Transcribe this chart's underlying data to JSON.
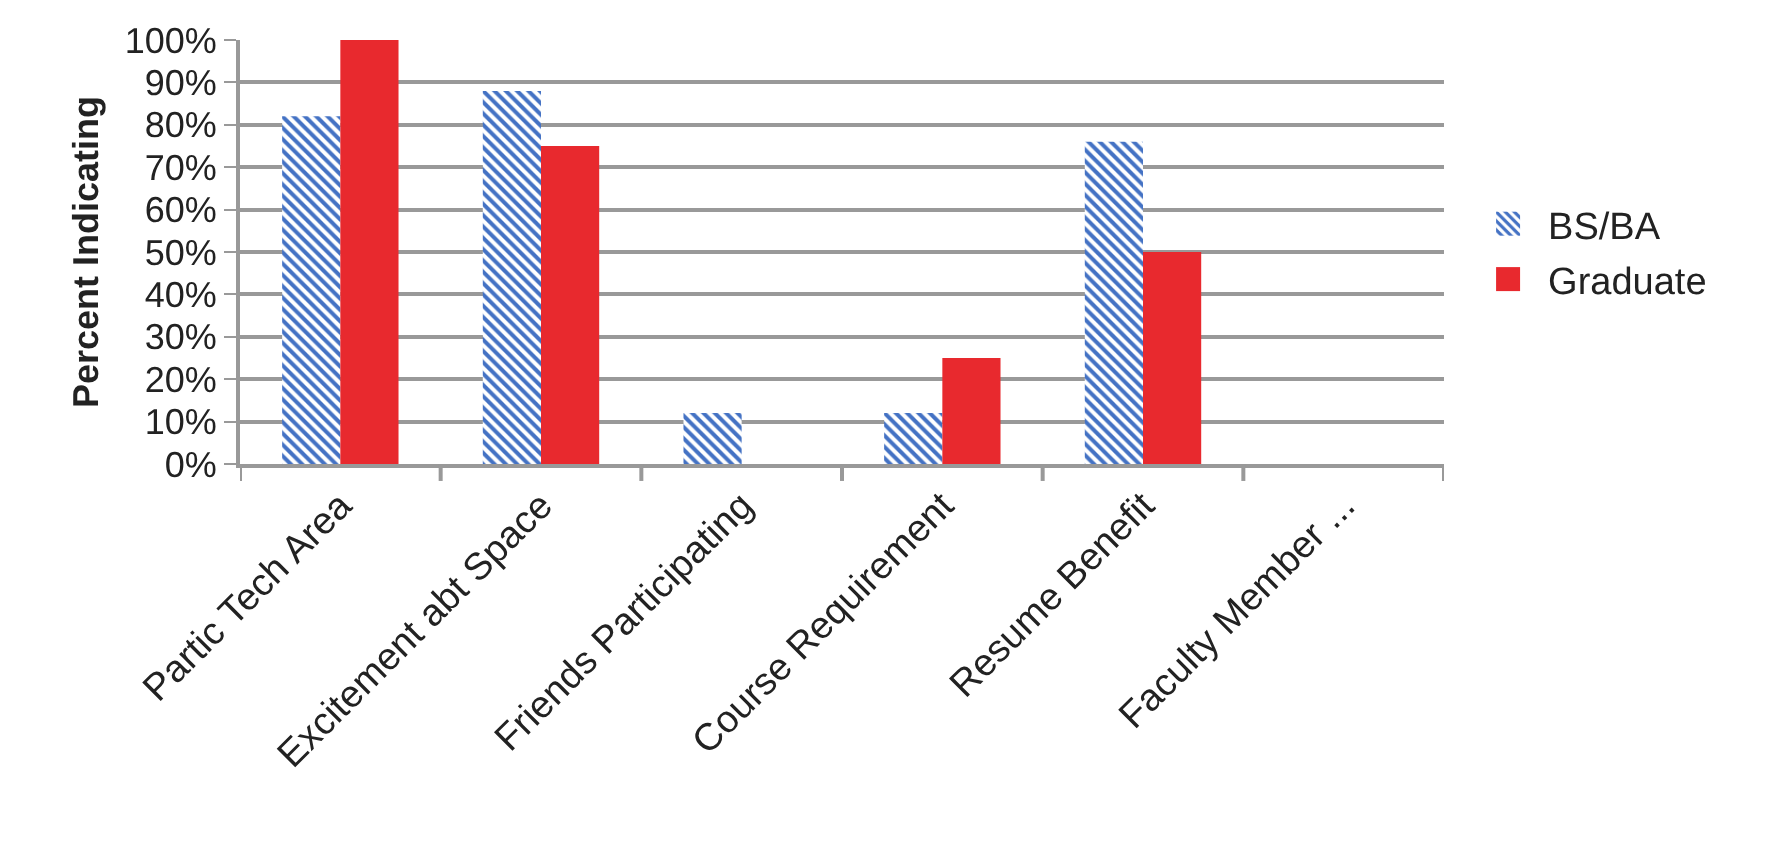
{
  "chart_data": {
    "type": "bar",
    "ylabel": "Percent Indicating",
    "categories": [
      "Partic Tech Area",
      "Excitement abt Space",
      "Friends Participating",
      "Course Requirement",
      "Resume Benefit",
      "Faculty Member ..."
    ],
    "series": [
      {
        "name": "BS/BA",
        "color": "#4472c4",
        "values": [
          82,
          88,
          12,
          12,
          76,
          0
        ]
      },
      {
        "name": "Graduate",
        "color": "#e8292e",
        "values": [
          100,
          75,
          0,
          25,
          50,
          0
        ]
      }
    ],
    "ylim": [
      0,
      100
    ],
    "yticks": [
      {
        "value": 0,
        "label": "0%"
      },
      {
        "value": 10,
        "label": "10%"
      },
      {
        "value": 20,
        "label": "20%"
      },
      {
        "value": 30,
        "label": "30%"
      },
      {
        "value": 40,
        "label": "40%"
      },
      {
        "value": 50,
        "label": "50%"
      },
      {
        "value": 60,
        "label": "60%"
      },
      {
        "value": 70,
        "label": "70%"
      },
      {
        "value": 80,
        "label": "80%"
      },
      {
        "value": 90,
        "label": "90%"
      },
      {
        "value": 100,
        "label": "100%"
      }
    ],
    "grid": "y",
    "legend": "right"
  }
}
